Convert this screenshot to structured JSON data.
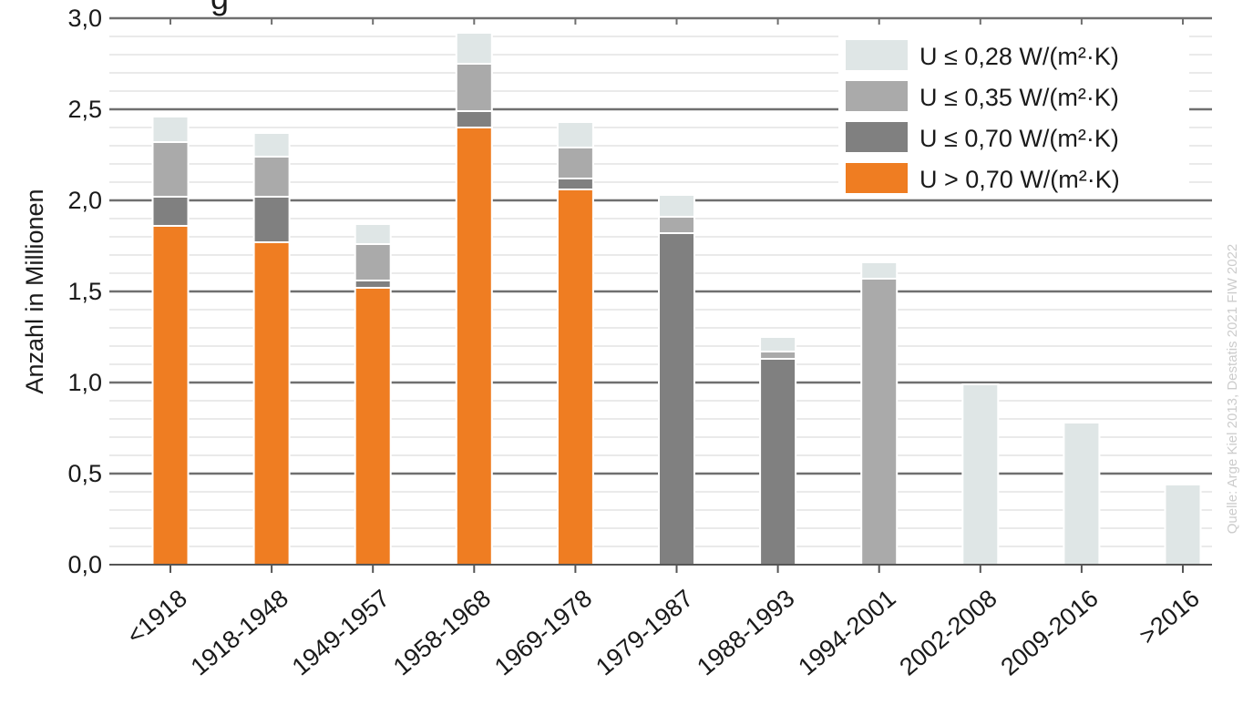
{
  "chart_data": {
    "type": "bar",
    "stacked": true,
    "title": "g",
    "xlabel": "",
    "ylabel": "Anzahl in Millionen",
    "ylim": [
      0,
      3.0
    ],
    "yticks": [
      "0,0",
      "0,5",
      "1,0",
      "1,5",
      "2,0",
      "2,5",
      "3,0"
    ],
    "grid": true,
    "legend_position": "top-right",
    "categories": [
      "<1918",
      "1918-1948",
      "1949-1957",
      "1958-1968",
      "1969-1978",
      "1979-1987",
      "1988-1993",
      "1994-2001",
      "2002-2008",
      "2009-2016",
      ">2016"
    ],
    "series": [
      {
        "name": "U > 0,70 W/(m²·K)",
        "color": "#ef7d22",
        "values": [
          1.86,
          1.77,
          1.52,
          2.4,
          2.06,
          0,
          0,
          0,
          0,
          0,
          0
        ]
      },
      {
        "name": "U ≤ 0,70 W/(m²·K)",
        "color": "#808080",
        "values": [
          0.16,
          0.25,
          0.04,
          0.09,
          0.06,
          1.82,
          1.13,
          0,
          0,
          0,
          0
        ]
      },
      {
        "name": "U ≤ 0,35 W/(m²·K)",
        "color": "#aaaaaa",
        "values": [
          0.3,
          0.22,
          0.2,
          0.26,
          0.17,
          0.09,
          0.04,
          1.57,
          0,
          0,
          0
        ]
      },
      {
        "name": "U ≤ 0,28  W/(m²·K)",
        "color": "#dfe6e6",
        "values": [
          0.14,
          0.13,
          0.11,
          0.17,
          0.14,
          0.12,
          0.08,
          0.09,
          0.99,
          0.78,
          0.44
        ]
      }
    ],
    "legend_order": [
      3,
      2,
      1,
      0
    ],
    "source_note": "Quelle: Arge Kiel 2013, Destatis 2021 FIW 2022"
  }
}
